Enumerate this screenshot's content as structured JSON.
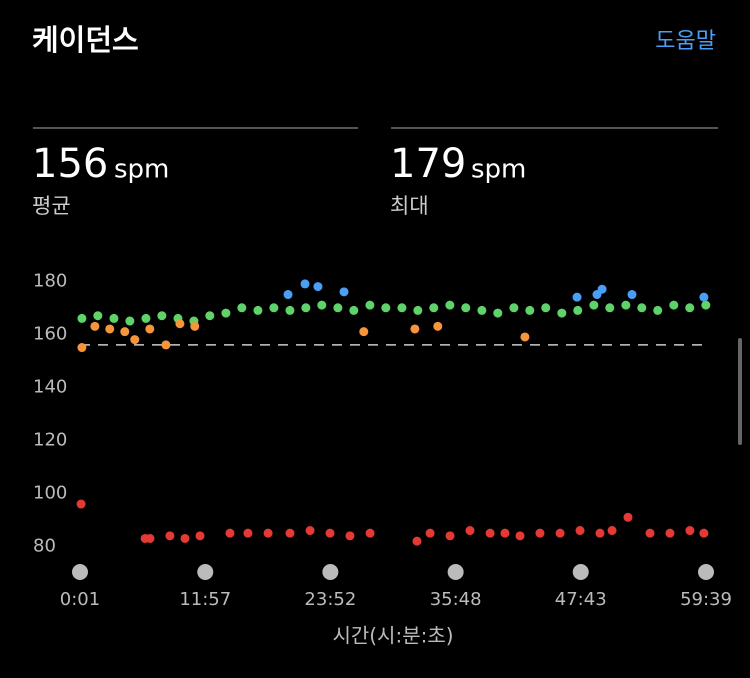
{
  "header": {
    "title": "케이던스",
    "help": "도움말"
  },
  "stats": [
    {
      "value": "156",
      "unit": "spm",
      "label": "평균"
    },
    {
      "value": "179",
      "unit": "spm",
      "label": "최대"
    }
  ],
  "chart_data": {
    "type": "scatter",
    "xlabel": "시간(시:분:초)",
    "xlim": [
      1,
      3579
    ],
    "xticks": [
      {
        "value": 1,
        "label": "0:01"
      },
      {
        "value": 717,
        "label": "11:57"
      },
      {
        "value": 1432,
        "label": "23:52"
      },
      {
        "value": 2148,
        "label": "35:48"
      },
      {
        "value": 2863,
        "label": "47:43"
      },
      {
        "value": 3579,
        "label": "59:39"
      }
    ],
    "ylim": [
      73,
      185
    ],
    "yticks": [
      80,
      100,
      120,
      140,
      160,
      180
    ],
    "average": 156,
    "series": [
      {
        "color": "#5fd36a",
        "x": [
          12,
          103,
          195,
          286,
          378,
          469,
          561,
          652,
          743,
          835,
          926,
          1018,
          1109,
          1201,
          1292,
          1383,
          1475,
          1566,
          1658,
          1749,
          1841,
          1932,
          2023,
          2115,
          2206,
          2298,
          2389,
          2481,
          2572,
          2663,
          2755,
          2846,
          2938,
          3029,
          3121,
          3212,
          3303,
          3395,
          3486,
          3578
        ],
        "values": [
          166,
          167,
          166,
          165,
          166,
          167,
          166,
          165,
          167,
          168,
          170,
          169,
          170,
          169,
          170,
          171,
          170,
          169,
          171,
          170,
          170,
          169,
          170,
          171,
          170,
          169,
          168,
          170,
          169,
          170,
          168,
          169,
          171,
          170,
          171,
          170,
          169,
          171,
          170,
          171
        ]
      },
      {
        "color": "#f7953a",
        "x": [
          12,
          86,
          171,
          257,
          314,
          400,
          492,
          572,
          657,
          1623,
          1915,
          2046,
          2544
        ],
        "values": [
          155,
          163,
          162,
          161,
          158,
          162,
          156,
          164,
          163,
          161,
          162,
          163,
          159
        ]
      },
      {
        "color": "#4a9ff5",
        "x": [
          1190,
          1287,
          1361,
          1510,
          2842,
          2956,
          2985,
          3156,
          3567
        ],
        "values": [
          175,
          179,
          178,
          176,
          174,
          175,
          177,
          175,
          174
        ]
      },
      {
        "color": "#e53935",
        "x": [
          7,
          373,
          401,
          515,
          601,
          687,
          858,
          961,
          1076,
          1201,
          1316,
          1430,
          1544,
          1659,
          1927,
          2002,
          2116,
          2230,
          2345,
          2430,
          2516,
          2630,
          2745,
          2859,
          2973,
          3042,
          3133,
          3259,
          3373,
          3487,
          3567
        ],
        "values": [
          96,
          83,
          83,
          84,
          83,
          84,
          85,
          85,
          85,
          85,
          86,
          85,
          84,
          85,
          82,
          85,
          84,
          86,
          85,
          85,
          84,
          85,
          85,
          86,
          85,
          86,
          91,
          85,
          85,
          86,
          85
        ]
      }
    ]
  }
}
